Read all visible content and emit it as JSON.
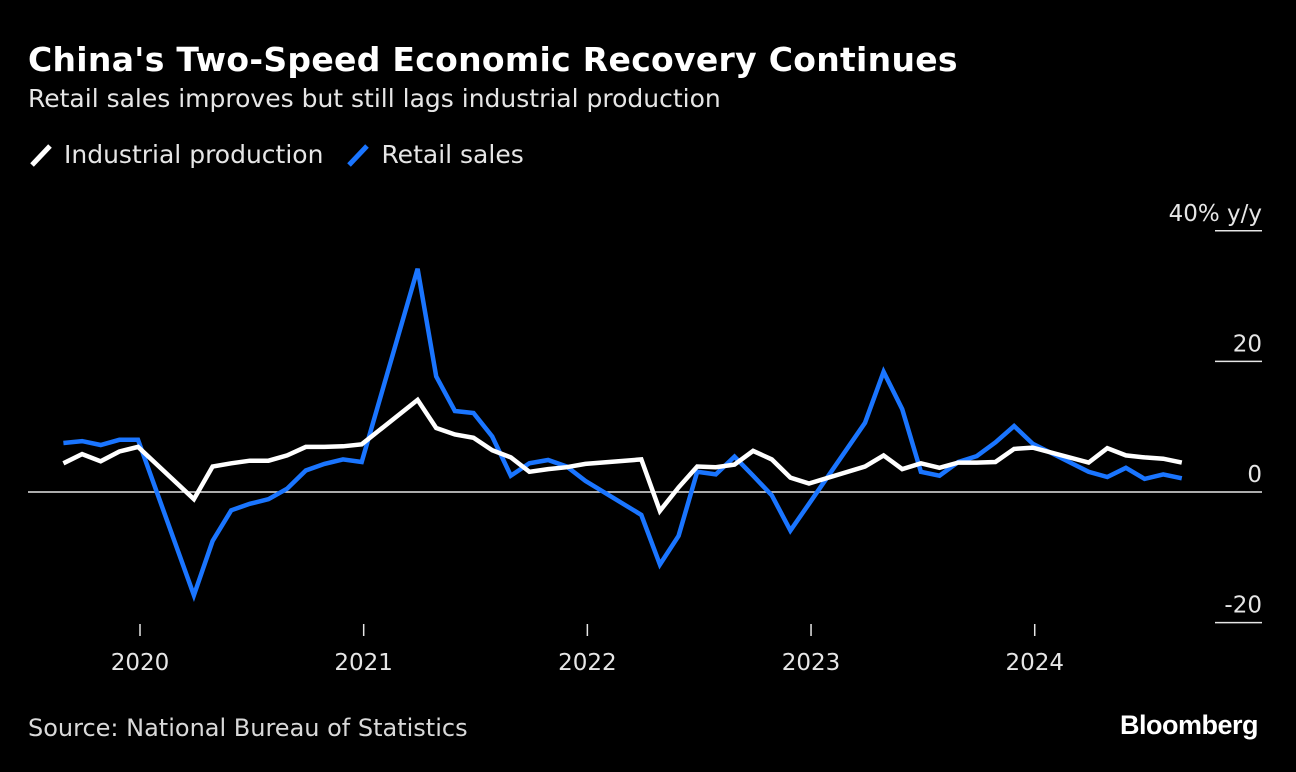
{
  "title": "China's Two-Speed Economic Recovery Continues",
  "subtitle": "Retail sales improves but still lags industrial production",
  "source": "Source: National Bureau of Statistics",
  "logo": "Bloomberg",
  "chart_data": {
    "type": "line",
    "title": "China's Two-Speed Economic Recovery Continues",
    "subtitle": "Retail sales improves but still lags industrial production",
    "ylabel": "40% y/y",
    "ylim": [
      -20,
      40
    ],
    "yticks": [
      {
        "value": 40,
        "label": "40% y/y"
      },
      {
        "value": 20,
        "label": "20"
      },
      {
        "value": 0,
        "label": "0"
      },
      {
        "value": -20,
        "label": "-20"
      }
    ],
    "xticks": [
      "2020",
      "2021",
      "2022",
      "2023",
      "2024"
    ],
    "legend_position": "top-left",
    "grid": false,
    "x": [
      "2019-08",
      "2019-09",
      "2019-10",
      "2019-11",
      "2019-12",
      "2020-03",
      "2020-04",
      "2020-05",
      "2020-06",
      "2020-07",
      "2020-08",
      "2020-09",
      "2020-10",
      "2020-11",
      "2020-12",
      "2021-03",
      "2021-04",
      "2021-05",
      "2021-06",
      "2021-07",
      "2021-08",
      "2021-09",
      "2021-10",
      "2021-11",
      "2021-12",
      "2022-03",
      "2022-04",
      "2022-05",
      "2022-06",
      "2022-07",
      "2022-08",
      "2022-09",
      "2022-10",
      "2022-11",
      "2022-12",
      "2023-03",
      "2023-04",
      "2023-05",
      "2023-06",
      "2023-07",
      "2023-08",
      "2023-09",
      "2023-10",
      "2023-11",
      "2023-12",
      "2024-03",
      "2024-04",
      "2024-05",
      "2024-06",
      "2024-07",
      "2024-08"
    ],
    "series": [
      {
        "name": "Industrial production",
        "color": "#ffffff",
        "values": [
          4.4,
          5.8,
          4.7,
          6.2,
          6.9,
          -1.1,
          3.9,
          4.4,
          4.8,
          4.8,
          5.6,
          6.9,
          6.9,
          7.0,
          7.3,
          14.1,
          9.8,
          8.8,
          8.3,
          6.4,
          5.3,
          3.1,
          3.5,
          3.8,
          4.3,
          5.0,
          -2.9,
          0.7,
          3.9,
          3.8,
          4.2,
          6.3,
          5.0,
          2.2,
          1.3,
          3.9,
          5.6,
          3.5,
          4.4,
          3.7,
          4.5,
          4.5,
          4.6,
          6.6,
          6.8,
          4.5,
          6.7,
          5.6,
          5.3,
          5.1,
          4.5
        ]
      },
      {
        "name": "Retail sales",
        "color": "#1a75ff",
        "values": [
          7.5,
          7.8,
          7.2,
          8.0,
          8.0,
          -15.8,
          -7.5,
          -2.8,
          -1.8,
          -1.1,
          0.5,
          3.3,
          4.3,
          5.0,
          4.6,
          34.2,
          17.7,
          12.4,
          12.1,
          8.5,
          2.5,
          4.4,
          4.9,
          3.9,
          1.7,
          -3.5,
          -11.1,
          -6.7,
          3.1,
          2.7,
          5.4,
          2.5,
          -0.5,
          -5.9,
          -1.8,
          10.6,
          18.4,
          12.7,
          3.1,
          2.5,
          4.6,
          5.5,
          7.6,
          10.1,
          7.4,
          3.1,
          2.3,
          3.7,
          2.0,
          2.7,
          2.1
        ]
      }
    ]
  }
}
